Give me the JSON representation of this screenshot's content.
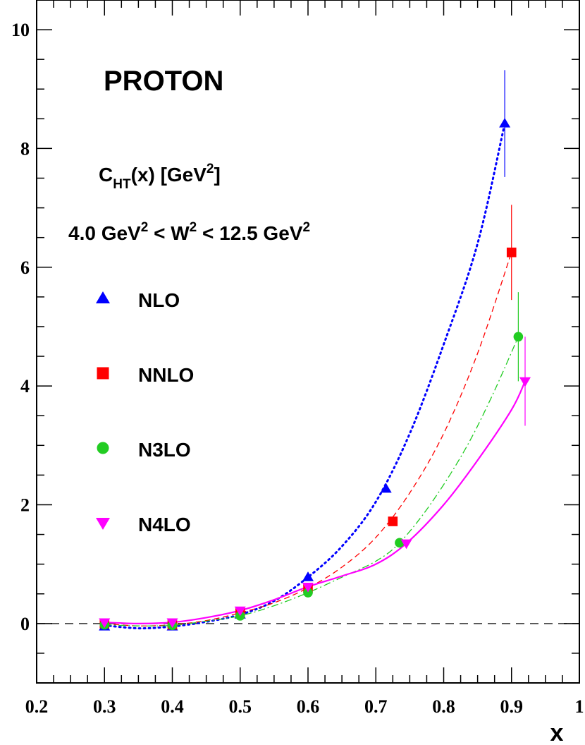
{
  "chart_data": {
    "type": "scatter",
    "title": "PROTON",
    "xlabel": "x",
    "ylabel": "",
    "xlim": [
      0.2,
      1.0
    ],
    "ylim": [
      -1.0,
      10.5
    ],
    "xticks": [
      "0.2",
      "0.3",
      "0.4",
      "0.5",
      "0.6",
      "0.7",
      "0.8",
      "0.9",
      "1"
    ],
    "yticks": [
      "0",
      "2",
      "4",
      "6",
      "8",
      "10"
    ],
    "annotation_main": "C",
    "annotation_main_sub": "HT",
    "annotation_main_rest": "(x) [GeV",
    "annotation_main_sup": "2",
    "annotation_main_end": "]",
    "annotation_range": {
      "p1": "4.0 GeV",
      "s1": "2",
      "p2": " < W",
      "s2": "2",
      "p3": " < 12.5 GeV",
      "s3": "2"
    },
    "legend_position": "left",
    "zero_line": true,
    "series": [
      {
        "name": "NLO",
        "marker": "triangle-up",
        "color": "#0000ff",
        "line": "dotted",
        "points": [
          {
            "x": 0.3,
            "y": -0.05
          },
          {
            "x": 0.4,
            "y": -0.05
          },
          {
            "x": 0.5,
            "y": 0.15
          },
          {
            "x": 0.6,
            "y": 0.78
          },
          {
            "x": 0.715,
            "y": 2.27
          },
          {
            "x": 0.89,
            "y": 8.42,
            "err": 0.9
          }
        ],
        "curve": [
          [
            0.3,
            -0.03
          ],
          [
            0.35,
            -0.08
          ],
          [
            0.4,
            -0.05
          ],
          [
            0.45,
            0.03
          ],
          [
            0.5,
            0.15
          ],
          [
            0.55,
            0.38
          ],
          [
            0.6,
            0.78
          ],
          [
            0.65,
            1.3
          ],
          [
            0.7,
            2.05
          ],
          [
            0.75,
            3.2
          ],
          [
            0.8,
            4.7
          ],
          [
            0.85,
            6.4
          ],
          [
            0.89,
            8.42
          ]
        ]
      },
      {
        "name": "NNLO",
        "marker": "square",
        "color": "#ff0000",
        "line": "dashed",
        "points": [
          {
            "x": 0.3,
            "y": 0.0
          },
          {
            "x": 0.4,
            "y": -0.02
          },
          {
            "x": 0.5,
            "y": 0.18
          },
          {
            "x": 0.6,
            "y": 0.6
          },
          {
            "x": 0.725,
            "y": 1.72
          },
          {
            "x": 0.9,
            "y": 6.25,
            "err": 0.8
          }
        ],
        "curve": [
          [
            0.3,
            0.0
          ],
          [
            0.35,
            -0.04
          ],
          [
            0.4,
            -0.02
          ],
          [
            0.45,
            0.05
          ],
          [
            0.5,
            0.18
          ],
          [
            0.55,
            0.35
          ],
          [
            0.6,
            0.6
          ],
          [
            0.65,
            0.95
          ],
          [
            0.7,
            1.45
          ],
          [
            0.75,
            2.2
          ],
          [
            0.8,
            3.2
          ],
          [
            0.85,
            4.55
          ],
          [
            0.9,
            6.25
          ]
        ]
      },
      {
        "name": "N3LO",
        "marker": "circle",
        "color": "#22cc22",
        "line": "dashdot",
        "points": [
          {
            "x": 0.3,
            "y": -0.02
          },
          {
            "x": 0.4,
            "y": -0.03
          },
          {
            "x": 0.5,
            "y": 0.13
          },
          {
            "x": 0.6,
            "y": 0.52
          },
          {
            "x": 0.735,
            "y": 1.36
          },
          {
            "x": 0.91,
            "y": 4.83,
            "err": 0.75
          }
        ],
        "curve": [
          [
            0.3,
            -0.02
          ],
          [
            0.35,
            -0.04
          ],
          [
            0.4,
            -0.03
          ],
          [
            0.45,
            0.04
          ],
          [
            0.5,
            0.13
          ],
          [
            0.55,
            0.3
          ],
          [
            0.6,
            0.52
          ],
          [
            0.65,
            0.78
          ],
          [
            0.7,
            1.05
          ],
          [
            0.735,
            1.36
          ],
          [
            0.78,
            2.0
          ],
          [
            0.83,
            2.9
          ],
          [
            0.87,
            3.8
          ],
          [
            0.91,
            4.83
          ]
        ]
      },
      {
        "name": "N4LO",
        "marker": "triangle-down",
        "color": "#ff00ff",
        "line": "solid",
        "points": [
          {
            "x": 0.3,
            "y": 0.02
          },
          {
            "x": 0.4,
            "y": 0.02
          },
          {
            "x": 0.5,
            "y": 0.22
          },
          {
            "x": 0.6,
            "y": 0.62
          },
          {
            "x": 0.745,
            "y": 1.35
          },
          {
            "x": 0.92,
            "y": 4.08,
            "err": 0.75
          }
        ],
        "curve": [
          [
            0.3,
            0.02
          ],
          [
            0.35,
            0.0
          ],
          [
            0.4,
            0.02
          ],
          [
            0.45,
            0.1
          ],
          [
            0.5,
            0.22
          ],
          [
            0.55,
            0.4
          ],
          [
            0.6,
            0.62
          ],
          [
            0.65,
            0.8
          ],
          [
            0.7,
            1.0
          ],
          [
            0.745,
            1.35
          ],
          [
            0.8,
            2.0
          ],
          [
            0.85,
            2.75
          ],
          [
            0.9,
            3.6
          ],
          [
            0.92,
            4.08
          ]
        ]
      }
    ]
  }
}
